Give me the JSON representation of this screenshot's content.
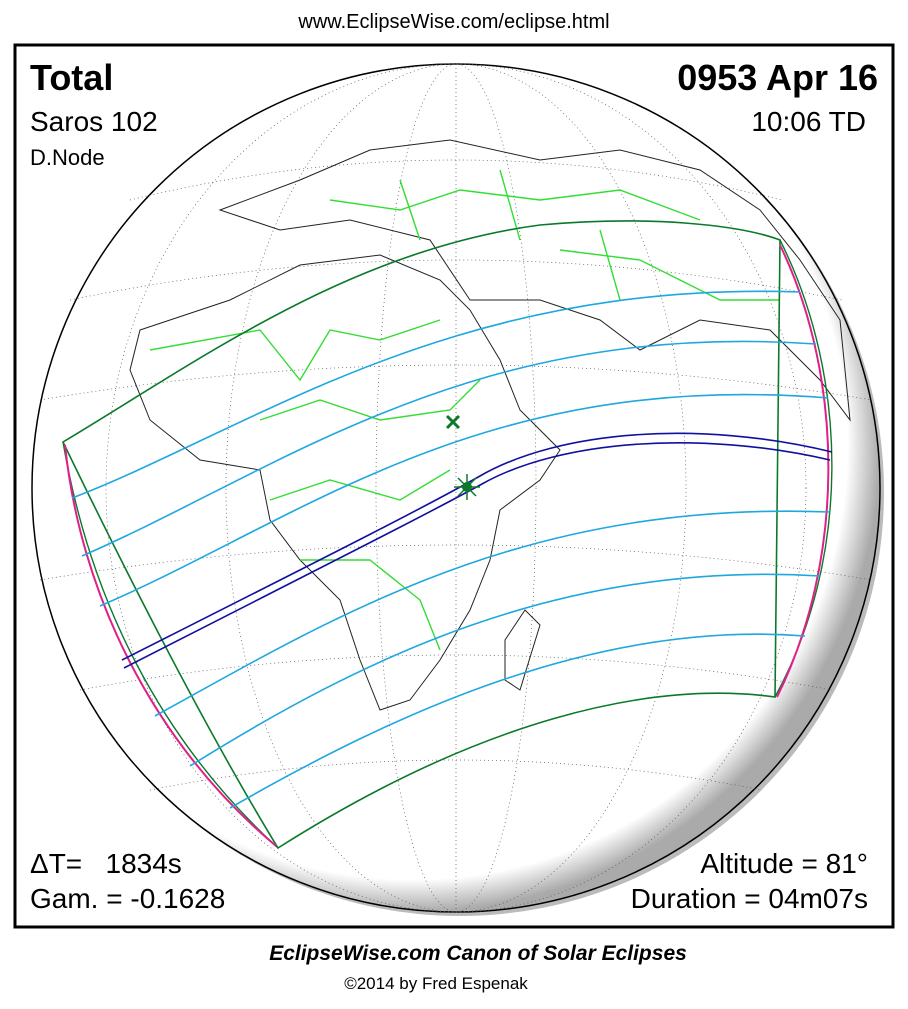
{
  "header": {
    "url": "www.EclipseWise.com/eclipse.html"
  },
  "map": {
    "eclipse_type": "Total",
    "saros": "Saros 102",
    "node": "D.Node",
    "date": "0953 Apr 16",
    "time": "10:06 TD",
    "delta_t": "ΔT=   1834s",
    "gamma": "Gam. = -0.1628",
    "altitude": "Altitude = 81°",
    "duration": "Duration = 04m07s"
  },
  "footer": {
    "title": "EclipseWise.com Canon of Solar Eclipses",
    "copyright": "©2014 by Fred Espenak"
  }
}
